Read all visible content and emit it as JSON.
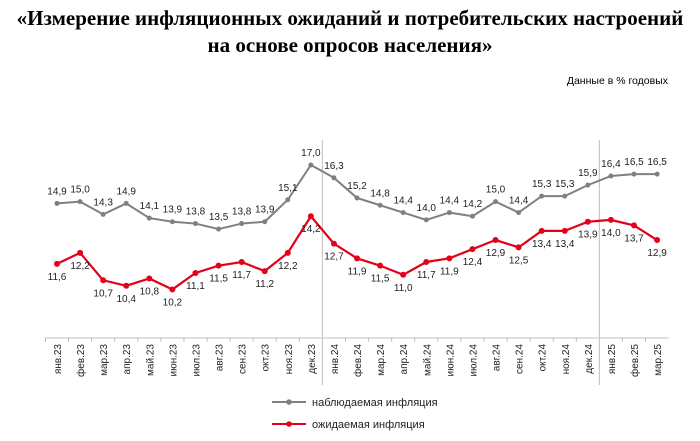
{
  "title_line1": "«Измерение инфляционных ожиданий и потребительских настроений",
  "title_line2": "на основе опросов населения»",
  "units": "Данные в % годовых",
  "chart_data": {
    "type": "line",
    "title": "«Измерение инфляционных ожиданий и потребительских настроений на основе опросов населения»",
    "ylabel": "Данные в % годовых",
    "categories": [
      "янв.23",
      "фев.23",
      "мар.23",
      "апр.23",
      "май.23",
      "июн.23",
      "июл.23",
      "авг.23",
      "сен.23",
      "окт.23",
      "ноя.23",
      "дек.23",
      "янв.24",
      "фев.24",
      "мар.24",
      "апр.24",
      "май.24",
      "июн.24",
      "июл.24",
      "авг.24",
      "сен.24",
      "окт.24",
      "ноя.24",
      "дек.24",
      "янв.25",
      "фев.25",
      "мар.25"
    ],
    "series": [
      {
        "name": "наблюдаемая  инфляция",
        "color": "#808080",
        "values": [
          14.9,
          15.0,
          14.3,
          14.9,
          14.1,
          13.9,
          13.8,
          13.5,
          13.8,
          13.9,
          15.1,
          17.0,
          16.3,
          15.2,
          14.8,
          14.4,
          14.0,
          14.4,
          14.2,
          15.0,
          14.4,
          15.3,
          15.3,
          15.9,
          16.4,
          16.5,
          16.5
        ]
      },
      {
        "name": "ожидаемая  инфляция",
        "color": "#e2001a",
        "values": [
          11.6,
          12.2,
          10.7,
          10.4,
          10.8,
          10.2,
          11.1,
          11.5,
          11.7,
          11.2,
          12.2,
          14.2,
          12.7,
          11.9,
          11.5,
          11.0,
          11.7,
          11.9,
          12.4,
          12.9,
          12.5,
          13.4,
          13.4,
          13.9,
          14.0,
          13.7,
          12.9
        ]
      }
    ],
    "year_separators_after": [
      "дек.23",
      "дек.24"
    ],
    "legend": "bottom",
    "grid": false,
    "decimal_separator": ","
  }
}
